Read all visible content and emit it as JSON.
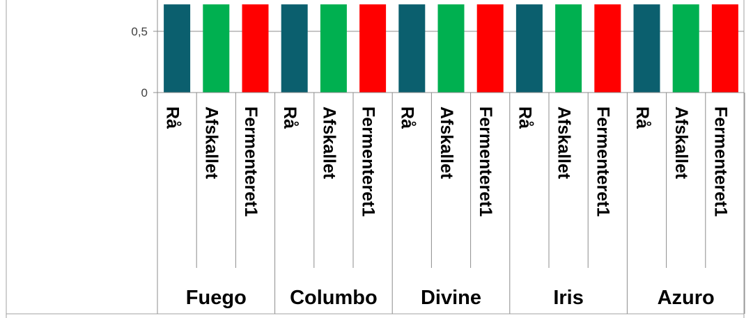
{
  "chart_data": {
    "type": "bar",
    "title": "",
    "xlabel": "",
    "ylabel": "",
    "ylim": [
      0,
      0.72
    ],
    "y_ticks": [
      {
        "value": 0,
        "label": "0"
      },
      {
        "value": 0.5,
        "label": "0,5"
      }
    ],
    "gridlines": true,
    "groups": [
      {
        "label": "Fuego",
        "bars": [
          {
            "label": "Rå",
            "value": 0.72,
            "color": "#0b5f6e"
          },
          {
            "label": "Afskallet",
            "value": 0.72,
            "color": "#00b050"
          },
          {
            "label": "Fermenteret1",
            "value": 0.72,
            "color": "#ff0000"
          }
        ]
      },
      {
        "label": "Columbo",
        "bars": [
          {
            "label": "Rå",
            "value": 0.72,
            "color": "#0b5f6e"
          },
          {
            "label": "Afskallet",
            "value": 0.72,
            "color": "#00b050"
          },
          {
            "label": "Fermenteret1",
            "value": 0.72,
            "color": "#ff0000"
          }
        ]
      },
      {
        "label": "Divine",
        "bars": [
          {
            "label": "Rå",
            "value": 0.72,
            "color": "#0b5f6e"
          },
          {
            "label": "Afskallet",
            "value": 0.72,
            "color": "#00b050"
          },
          {
            "label": "Fermenteret1",
            "value": 0.72,
            "color": "#ff0000"
          }
        ]
      },
      {
        "label": "Iris",
        "bars": [
          {
            "label": "Rå",
            "value": 0.72,
            "color": "#0b5f6e"
          },
          {
            "label": "Afskallet",
            "value": 0.72,
            "color": "#00b050"
          },
          {
            "label": "Fermenteret1",
            "value": 0.72,
            "color": "#ff0000"
          }
        ]
      },
      {
        "label": "Azuro",
        "bars": [
          {
            "label": "Rå",
            "value": 0.72,
            "color": "#0b5f6e"
          },
          {
            "label": "Afskallet",
            "value": 0.72,
            "color": "#00b050"
          },
          {
            "label": "Fermenteret1",
            "value": 0.72,
            "color": "#ff0000"
          }
        ]
      }
    ]
  }
}
